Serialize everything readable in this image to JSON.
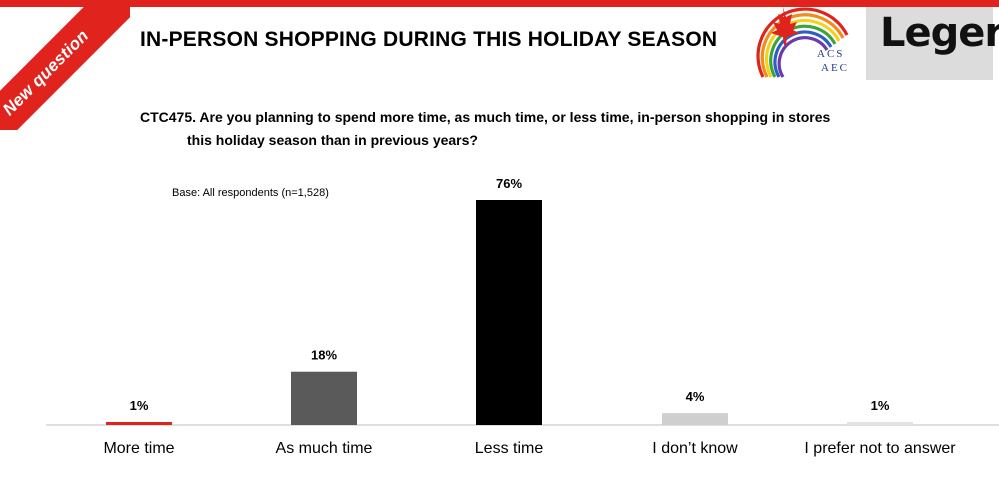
{
  "header": {
    "ribbon_label": "New question",
    "title": "IN-PERSON SHOPPING DURING THIS HOLIDAY SEASON",
    "logo_acs_line1": "ACS",
    "logo_acs_line2": "AEC",
    "logo_leger": "Leger"
  },
  "question": {
    "line1": "CTC475. Are you planning to spend more time, as much time, or less time, in-person shopping in stores",
    "line2": "this holiday season than in previous years?"
  },
  "base_note": "Base: All respondents (n=1,528)",
  "colors": {
    "accent_red": "#e0231c",
    "bar_red": "#e0231c",
    "bar_dark_gray": "#5a5a5a",
    "bar_black": "#000000",
    "bar_light_gray": "#cfcfcf",
    "bar_lighter_gray": "#e3e3e3"
  },
  "chart_data": {
    "type": "bar",
    "categories": [
      "More time",
      "As much time",
      "Less time",
      "I don’t know",
      "I prefer not to answer"
    ],
    "values": [
      1,
      18,
      76,
      4,
      1
    ],
    "data_labels": [
      "1%",
      "18%",
      "76%",
      "4%",
      "1%"
    ],
    "colors": [
      "#e0231c",
      "#5a5a5a",
      "#000000",
      "#cfcfcf",
      "#e3e3e3"
    ],
    "title": "",
    "xlabel": "",
    "ylabel": "",
    "ylim": [
      0,
      76
    ],
    "grid": false,
    "legend": "none"
  }
}
